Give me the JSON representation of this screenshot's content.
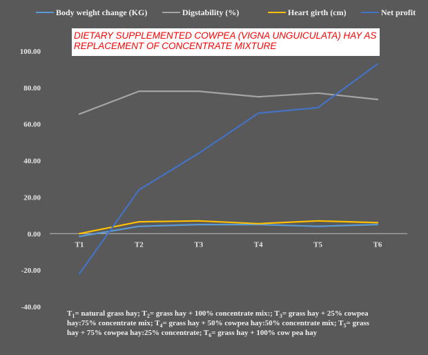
{
  "chart_data": {
    "type": "line",
    "title_lines": [
      "DIETARY SUPPLEMENTED COWPEA (VIGNA UNGUICULATA) HAY AS",
      "REPLACEMENT OF CONCENTRATE MIXTURE"
    ],
    "categories": [
      "T1",
      "T2",
      "T3",
      "T4",
      "T5",
      "T6"
    ],
    "ylim": [
      -40,
      100
    ],
    "yticks": [
      "100.00",
      "80.00",
      "60.00",
      "40.00",
      "20.00",
      "0.00",
      "-20.00",
      "-40.00"
    ],
    "ytick_values": [
      100,
      80,
      60,
      40,
      20,
      0,
      -20,
      -40
    ],
    "legend_position": "top",
    "grid": false,
    "series": [
      {
        "name": "Body weight change (KG)",
        "color": "#5b9bd5",
        "values": [
          -1.5,
          4,
          5,
          5,
          4,
          5
        ]
      },
      {
        "name": "Digstability (%)",
        "color": "#a5a5a5",
        "values": [
          65.5,
          78,
          78,
          75,
          77,
          73.5
        ]
      },
      {
        "name": "Heart girth (cm)",
        "color": "#ffc000",
        "values": [
          0,
          6.5,
          7,
          5.5,
          7,
          6
        ]
      },
      {
        "name": "Net profit",
        "color": "#4472c4",
        "values": [
          -22,
          24,
          44,
          66,
          69,
          93
        ]
      }
    ],
    "footnote_lines": [
      [
        {
          "t": "T"
        },
        {
          "t": "1",
          "sub": true
        },
        {
          "t": "= natural grass hay; T"
        },
        {
          "t": "2",
          "sub": true
        },
        {
          "t": "= grass hay + 100% concentrate mix:; T"
        },
        {
          "t": "3",
          "sub": true
        },
        {
          "t": "= grass hay + 25% cowpea"
        }
      ],
      [
        {
          "t": "hay:75% concentrate mix; T"
        },
        {
          "t": "4",
          "sub": true
        },
        {
          "t": "= grass hay + 50% cowpea hay:50% concentrate mix; T"
        },
        {
          "t": "5",
          "sub": true
        },
        {
          "t": "= grass"
        }
      ],
      [
        {
          "t": "hay + 75% cowpea hay:25% concentrate; T"
        },
        {
          "t": "6",
          "sub": true
        },
        {
          "t": "= grass hay + 100% cow pea hay"
        }
      ]
    ]
  }
}
